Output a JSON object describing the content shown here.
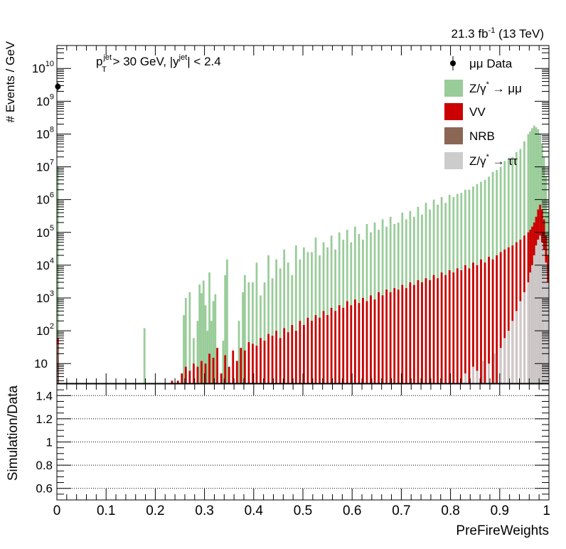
{
  "header": {
    "lumi_label": "21.3 fb",
    "lumi_exponent": "-1",
    "energy_label": " (13 TeV)"
  },
  "cut_label": {
    "pt_symbol": "p",
    "pt_sup": "jet",
    "pt_sub": "T",
    "pt_cut": " > 30 GeV,  |y",
    "y_sup": "jet",
    "y_cut": "| < 2.4"
  },
  "chart_data": [
    {
      "type": "bar",
      "stacked": true,
      "xlabel": "PreFireWeights",
      "ylabel": "# Events / GeV",
      "xlim": [
        0,
        1
      ],
      "ylim": [
        2.5,
        50000000000
      ],
      "yscale": "log",
      "bin_width": 0.004,
      "x_ticks": [
        "0",
        "0.1",
        "0.2",
        "0.3",
        "0.4",
        "0.5",
        "0.6",
        "0.7",
        "0.8",
        "0.9",
        "1"
      ],
      "y_ticks": [
        "10",
        "10",
        "10",
        "10",
        "10",
        "10",
        "10",
        "10",
        "10",
        "10"
      ],
      "y_tick_exponents": [
        "",
        "2",
        "3",
        "4",
        "5",
        "6",
        "7",
        "8",
        "9",
        "10"
      ],
      "legend_placement": "top-right",
      "series": [
        {
          "name": "μμ Data",
          "kind": "points",
          "color": "#000000",
          "x": [
            0.002
          ],
          "values": [
            2800000000
          ]
        },
        {
          "name": "Z/γ",
          "name_sup": "*",
          "name_tail": " → μμ",
          "kind": "bar",
          "color": "#99cc99",
          "x": [
            0.002,
            0.178,
            0.258,
            0.262,
            0.27,
            0.278,
            0.286,
            0.29,
            0.294,
            0.298,
            0.302,
            0.306,
            0.31,
            0.314,
            0.318,
            0.322,
            0.338,
            0.342,
            0.346,
            0.37,
            0.378,
            0.382,
            0.39,
            0.398,
            0.406,
            0.414,
            0.422,
            0.43,
            0.438,
            0.446,
            0.454,
            0.462,
            0.47,
            0.478,
            0.486,
            0.494,
            0.502,
            0.51,
            0.518,
            0.526,
            0.534,
            0.542,
            0.55,
            0.558,
            0.566,
            0.574,
            0.582,
            0.59,
            0.598,
            0.606,
            0.614,
            0.622,
            0.63,
            0.638,
            0.646,
            0.654,
            0.662,
            0.67,
            0.678,
            0.686,
            0.694,
            0.702,
            0.71,
            0.718,
            0.726,
            0.734,
            0.742,
            0.75,
            0.758,
            0.766,
            0.774,
            0.782,
            0.79,
            0.798,
            0.806,
            0.814,
            0.822,
            0.83,
            0.838,
            0.846,
            0.854,
            0.862,
            0.87,
            0.878,
            0.886,
            0.894,
            0.902,
            0.91,
            0.918,
            0.926,
            0.934,
            0.942,
            0.95,
            0.958,
            0.962,
            0.966,
            0.97,
            0.974,
            0.978,
            0.982,
            0.986,
            0.99,
            0.994,
            0.998
          ],
          "values": [
            10000000,
            120,
            300,
            1000,
            1500,
            60,
            200,
            2600,
            1400,
            3400,
            600,
            100,
            6000,
            200,
            800,
            1300,
            50,
            5000,
            15000,
            200,
            1500,
            5000,
            3000,
            3000,
            12000,
            1200,
            3000,
            20000,
            4000,
            15000,
            8000,
            30000,
            12000,
            5000,
            40000,
            15000,
            35000,
            25000,
            25000,
            70000,
            20000,
            50000,
            35000,
            80000,
            30000,
            100000,
            60000,
            120000,
            50000,
            150000,
            90000,
            60000,
            180000,
            100000,
            200000,
            120000,
            250000,
            150000,
            300000,
            180000,
            200000,
            400000,
            250000,
            450000,
            300000,
            600000,
            350000,
            800000,
            500000,
            1000000,
            700000,
            1200000,
            800000,
            1400000,
            1200000,
            1500000,
            1600000,
            2000000,
            2000000,
            2500000,
            3000000,
            3500000,
            4000000,
            5000000,
            7000000,
            8000000,
            10000000,
            15000000,
            18000000,
            20000000,
            28000000,
            35000000,
            60000000,
            100000000,
            120000000,
            150000000,
            180000000,
            160000000,
            140000000,
            100000000,
            50000000,
            20000000,
            5000000,
            400000
          ]
        },
        {
          "name": "VV",
          "kind": "bar",
          "color": "#cc0000",
          "x": [
            0.002,
            0.234,
            0.246,
            0.254,
            0.262,
            0.27,
            0.278,
            0.286,
            0.294,
            0.302,
            0.31,
            0.318,
            0.326,
            0.334,
            0.342,
            0.35,
            0.358,
            0.366,
            0.374,
            0.382,
            0.39,
            0.398,
            0.406,
            0.414,
            0.422,
            0.43,
            0.438,
            0.446,
            0.454,
            0.462,
            0.47,
            0.478,
            0.486,
            0.494,
            0.502,
            0.51,
            0.518,
            0.526,
            0.534,
            0.542,
            0.55,
            0.558,
            0.566,
            0.574,
            0.582,
            0.59,
            0.598,
            0.606,
            0.614,
            0.622,
            0.63,
            0.638,
            0.646,
            0.654,
            0.662,
            0.67,
            0.678,
            0.686,
            0.694,
            0.702,
            0.71,
            0.718,
            0.726,
            0.734,
            0.742,
            0.75,
            0.758,
            0.766,
            0.774,
            0.782,
            0.79,
            0.798,
            0.806,
            0.814,
            0.822,
            0.83,
            0.838,
            0.846,
            0.854,
            0.862,
            0.87,
            0.878,
            0.886,
            0.894,
            0.902,
            0.91,
            0.918,
            0.926,
            0.934,
            0.942,
            0.95,
            0.958,
            0.962,
            0.966,
            0.97,
            0.974,
            0.978,
            0.982,
            0.986,
            0.99,
            0.994,
            0.998
          ],
          "values": [
            60,
            3,
            3,
            5,
            8,
            6,
            10,
            8,
            12,
            10,
            20,
            15,
            30,
            5,
            18,
            8,
            25,
            12,
            30,
            25,
            45,
            40,
            35,
            60,
            50,
            80,
            70,
            100,
            60,
            120,
            90,
            150,
            100,
            200,
            150,
            250,
            200,
            300,
            250,
            400,
            300,
            500,
            400,
            600,
            500,
            800,
            600,
            900,
            700,
            1000,
            800,
            1200,
            900,
            1500,
            1200,
            1800,
            1500,
            2000,
            1800,
            2500,
            2000,
            3000,
            2500,
            3500,
            3000,
            4000,
            3500,
            5000,
            4000,
            6000,
            5000,
            7000,
            6000,
            8000,
            7000,
            10000,
            8000,
            12000,
            10000,
            15000,
            12000,
            18000,
            15000,
            20000,
            25000,
            30000,
            35000,
            40000,
            50000,
            60000,
            80000,
            100000,
            120000,
            150000,
            200000,
            300000,
            500000,
            700000,
            500000,
            250000,
            80000,
            20000
          ]
        },
        {
          "name": "NRB",
          "kind": "bar",
          "color": "#8b6655",
          "x": [
            0.002
          ],
          "values": [
            40
          ]
        },
        {
          "name": "Z/γ",
          "name_sup": "*",
          "name_tail": " → ττ",
          "kind": "bar",
          "color": "#cccccc",
          "x": [
            0.83,
            0.846,
            0.854,
            0.866,
            0.878,
            0.89,
            0.902,
            0.91,
            0.918,
            0.926,
            0.934,
            0.942,
            0.95,
            0.958,
            0.962,
            0.966,
            0.97,
            0.974,
            0.978,
            0.982,
            0.986,
            0.99,
            0.994,
            0.998
          ],
          "values": [
            5,
            8,
            6,
            12,
            10,
            20,
            30,
            60,
            100,
            200,
            400,
            800,
            1500,
            3000,
            6000,
            10000,
            20000,
            40000,
            60000,
            80000,
            50000,
            30000,
            12000,
            3000
          ]
        }
      ]
    },
    {
      "type": "scatter",
      "xlabel": "PreFireWeights",
      "ylabel": "Simulation/Data",
      "xlim": [
        0,
        1
      ],
      "ylim": [
        0.5,
        1.5
      ],
      "reference_lines": [
        0.6,
        0.8,
        1.0,
        1.2,
        1.4
      ],
      "y_ticks": [
        "0.6",
        "0.8",
        "1",
        "1.2",
        "1.4"
      ],
      "x_ticks": [
        "0",
        "0.1",
        "0.2",
        "0.3",
        "0.4",
        "0.5",
        "0.6",
        "0.7",
        "0.8",
        "0.9",
        "1"
      ],
      "series": []
    }
  ]
}
